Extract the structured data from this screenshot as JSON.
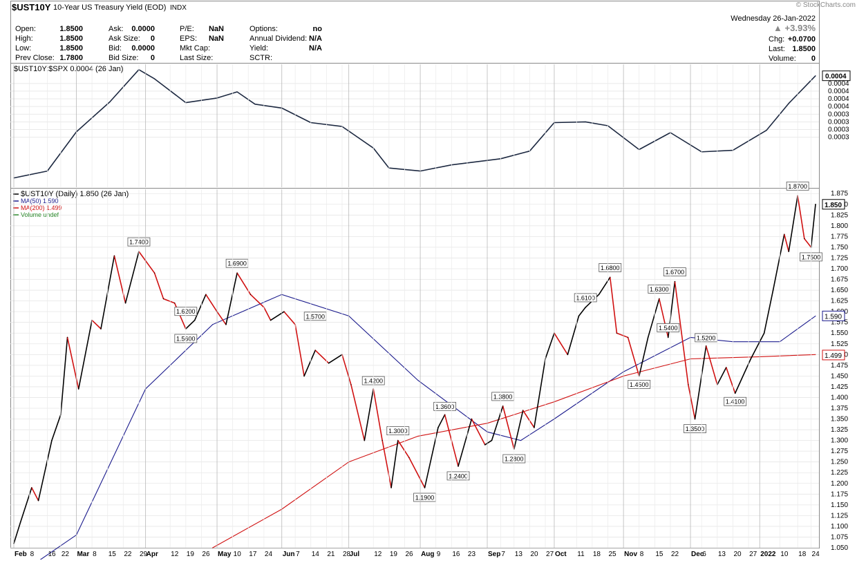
{
  "header": {
    "symbol": "$UST10Y",
    "description": "10-Year US Treasury Yield (EOD)",
    "exchange": "INDX",
    "date": "Wednesday  26-Jan-2022",
    "pct_change": "+3.93%",
    "watermark": "© StockCharts.com",
    "stats": [
      {
        "label": "Open:",
        "value": "1.8500"
      },
      {
        "label": "High:",
        "value": "1.8500"
      },
      {
        "label": "Low:",
        "value": "1.8500"
      },
      {
        "label": "Prev Close:",
        "value": "1.7800"
      },
      {
        "label": "Ask:",
        "value": "0.0000"
      },
      {
        "label": "Ask Size:",
        "value": "0"
      },
      {
        "label": "Bid:",
        "value": "0.0000"
      },
      {
        "label": "Bid Size:",
        "value": "0"
      },
      {
        "label": "P/E:",
        "value": "NaN"
      },
      {
        "label": "EPS:",
        "value": "NaN"
      },
      {
        "label": "Mkt Cap:",
        "value": ""
      },
      {
        "label": "Last Size:",
        "value": ""
      },
      {
        "label": "Options:",
        "value": "no"
      },
      {
        "label": "Annual Dividend:",
        "value": "N/A"
      },
      {
        "label": "Yield:",
        "value": "N/A"
      },
      {
        "label": "SCTR:",
        "value": ""
      }
    ],
    "right_stats": [
      {
        "label": "Chg:",
        "value": "+0.0700"
      },
      {
        "label": "Last:",
        "value": "1.8500"
      },
      {
        "label": "Volume:",
        "value": "0"
      }
    ]
  },
  "chart_data": [
    {
      "type": "line",
      "panel": "ratio",
      "legend": "$UST10Y:$SPX 0.0004 (26 Jan)",
      "ytick_labels": [
        "0.0004",
        "0.0004",
        "0.0004",
        "0.0004",
        "0.0003",
        "0.0003",
        "0.0003",
        "0.0003"
      ],
      "last_label": "0.0004",
      "ylim": [
        0.000265,
        0.000425
      ],
      "x": [
        "2021-02-01",
        "2021-02-16",
        "2021-03-01",
        "2021-03-16",
        "2021-03-29",
        "2021-04-05",
        "2021-04-19",
        "2021-05-03",
        "2021-05-12",
        "2021-05-20",
        "2021-06-01",
        "2021-06-14",
        "2021-06-28",
        "2021-07-12",
        "2021-07-19",
        "2021-08-02",
        "2021-08-16",
        "2021-09-07",
        "2021-09-20",
        "2021-10-01",
        "2021-10-15",
        "2021-10-25",
        "2021-11-08",
        "2021-11-22",
        "2021-12-06",
        "2021-12-20",
        "2022-01-04",
        "2022-01-14",
        "2022-01-26"
      ],
      "values": [
        0.000277,
        0.000286,
        0.000337,
        0.000376,
        0.000418,
        0.000406,
        0.000375,
        0.000381,
        0.000389,
        0.000373,
        0.000368,
        0.000349,
        0.000344,
        0.000316,
        0.00029,
        0.000286,
        0.000294,
        0.000302,
        0.000312,
        0.000349,
        0.00035,
        0.000345,
        0.000314,
        0.000336,
        0.000311,
        0.000313,
        0.000339,
        0.000374,
        0.00041
      ]
    },
    {
      "type": "line",
      "panel": "price",
      "legend": [
        {
          "name": "$UST10Y (Daily) 1.850 (26 Jan)",
          "color": "#000000"
        },
        {
          "name": "MA(50) 1.590",
          "color": "#1a1a8c"
        },
        {
          "name": "MA(200) 1.499",
          "color": "#d01010"
        },
        {
          "name": "Volume undef",
          "color": "#2e8b2e"
        }
      ],
      "ylim": [
        1.05,
        1.885
      ],
      "yticks": [
        "1.875",
        "1.850",
        "1.825",
        "1.800",
        "1.775",
        "1.750",
        "1.725",
        "1.700",
        "1.675",
        "1.650",
        "1.625",
        "1.600",
        "1.575",
        "1.550",
        "1.525",
        "1.500",
        "1.475",
        "1.450",
        "1.425",
        "1.400",
        "1.375",
        "1.350",
        "1.325",
        "1.300",
        "1.275",
        "1.250",
        "1.225",
        "1.200",
        "1.175",
        "1.150",
        "1.125",
        "1.100",
        "1.075",
        "1.050"
      ],
      "xticks": [
        "Feb",
        "8",
        "16",
        "22",
        "Mar",
        "8",
        "15",
        "22",
        "29",
        "Apr",
        "12",
        "19",
        "26",
        "May",
        "10",
        "17",
        "24",
        "Jun",
        "7",
        "14",
        "21",
        "28",
        "Jul",
        "12",
        "19",
        "26",
        "Aug",
        "9",
        "16",
        "23",
        "Sep",
        "7",
        "13",
        "20",
        "27",
        "Oct",
        "11",
        "18",
        "25",
        "Nov",
        "8",
        "15",
        "22",
        "Dec",
        "6",
        "13",
        "20",
        "27",
        "2022",
        "10",
        "18",
        "24"
      ],
      "series": [
        {
          "name": "$UST10Y",
          "x": [
            "2021-02-01",
            "2021-02-04",
            "2021-02-09",
            "2021-02-12",
            "2021-02-18",
            "2021-02-22",
            "2021-02-25",
            "2021-03-02",
            "2021-03-08",
            "2021-03-12",
            "2021-03-18",
            "2021-03-23",
            "2021-03-29",
            "2021-04-05",
            "2021-04-09",
            "2021-04-14",
            "2021-04-19",
            "2021-04-23",
            "2021-04-28",
            "2021-05-03",
            "2021-05-07",
            "2021-05-12",
            "2021-05-18",
            "2021-05-24",
            "2021-05-27",
            "2021-06-02",
            "2021-06-07",
            "2021-06-11",
            "2021-06-16",
            "2021-06-22",
            "2021-06-28",
            "2021-07-02",
            "2021-07-08",
            "2021-07-12",
            "2021-07-16",
            "2021-07-20",
            "2021-07-23",
            "2021-07-28",
            "2021-08-04",
            "2021-08-10",
            "2021-08-13",
            "2021-08-19",
            "2021-08-25",
            "2021-08-31",
            "2021-09-03",
            "2021-09-08",
            "2021-09-13",
            "2021-09-17",
            "2021-09-22",
            "2021-09-27",
            "2021-10-01",
            "2021-10-07",
            "2021-10-12",
            "2021-10-15",
            "2021-10-21",
            "2021-10-26",
            "2021-10-29",
            "2021-11-03",
            "2021-11-08",
            "2021-11-12",
            "2021-11-17",
            "2021-11-21",
            "2021-11-24",
            "2021-11-30",
            "2021-12-03",
            "2021-12-08",
            "2021-12-13",
            "2021-12-17",
            "2021-12-21",
            "2021-12-28",
            "2022-01-03",
            "2022-01-07",
            "2022-01-12",
            "2022-01-14",
            "2022-01-18",
            "2022-01-21",
            "2022-01-24",
            "2022-01-26"
          ],
          "values": [
            1.06,
            1.11,
            1.19,
            1.16,
            1.3,
            1.36,
            1.54,
            1.42,
            1.58,
            1.56,
            1.73,
            1.62,
            1.74,
            1.69,
            1.63,
            1.62,
            1.56,
            1.58,
            1.64,
            1.6,
            1.57,
            1.69,
            1.64,
            1.61,
            1.58,
            1.6,
            1.57,
            1.45,
            1.51,
            1.48,
            1.5,
            1.43,
            1.3,
            1.42,
            1.3,
            1.19,
            1.3,
            1.26,
            1.19,
            1.33,
            1.36,
            1.24,
            1.35,
            1.29,
            1.3,
            1.38,
            1.28,
            1.37,
            1.33,
            1.49,
            1.55,
            1.5,
            1.59,
            1.61,
            1.64,
            1.68,
            1.55,
            1.54,
            1.45,
            1.54,
            1.63,
            1.54,
            1.67,
            1.43,
            1.35,
            1.52,
            1.43,
            1.47,
            1.41,
            1.49,
            1.55,
            1.65,
            1.78,
            1.74,
            1.87,
            1.77,
            1.75,
            1.85
          ]
        },
        {
          "name": "MA(50)",
          "x": [
            "2021-02-01",
            "2021-03-01",
            "2021-04-01",
            "2021-05-01",
            "2021-06-01",
            "2021-07-01",
            "2021-08-01",
            "2021-09-01",
            "2021-09-16",
            "2021-10-01",
            "2021-11-01",
            "2021-12-01",
            "2021-12-20",
            "2022-01-10",
            "2022-01-26"
          ],
          "values": [
            0.98,
            1.08,
            1.42,
            1.57,
            1.64,
            1.59,
            1.44,
            1.32,
            1.3,
            1.35,
            1.46,
            1.54,
            1.53,
            1.53,
            1.59
          ]
        },
        {
          "name": "MA(200)",
          "x": [
            "2021-05-01",
            "2021-06-01",
            "2021-07-01",
            "2021-08-01",
            "2021-09-01",
            "2021-10-01",
            "2021-11-01",
            "2021-12-01",
            "2022-01-01",
            "2022-01-26"
          ],
          "values": [
            1.05,
            1.14,
            1.25,
            1.31,
            1.34,
            1.39,
            1.45,
            1.49,
            1.495,
            1.5
          ]
        }
      ],
      "annotations": [
        "1.7400",
        "1.6200",
        "1.5600",
        "1.6900",
        "1.5700",
        "1.4200",
        "1.3000",
        "1.1900",
        "1.3600",
        "1.2400",
        "1.3800",
        "1.2800",
        "1.6100",
        "1.6800",
        "1.6300",
        "1.4500",
        "1.5400",
        "1.6700",
        "1.5200",
        "1.3500",
        "1.4100",
        "1.8700",
        "1.7500"
      ],
      "right_labels": [
        "1.850",
        "1.590",
        "1.499"
      ]
    }
  ]
}
